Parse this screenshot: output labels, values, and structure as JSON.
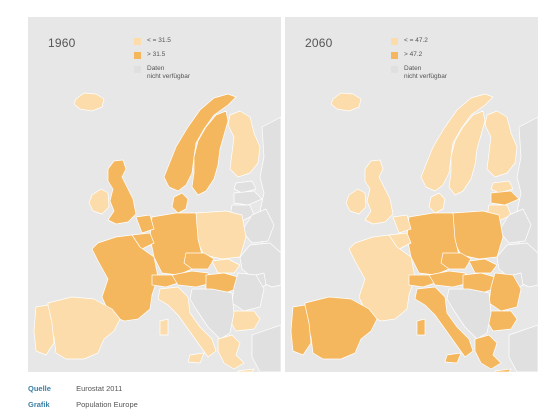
{
  "colors": {
    "low": "#fbdcaa",
    "high": "#f5b75e",
    "nodata": "#e0e0e0",
    "background": "#e7e7e7",
    "border": "#ffffff",
    "source_key": "#3a7fa6"
  },
  "panels": [
    {
      "year": "1960",
      "legend": [
        {
          "label": "< = 31.5",
          "color": "#fbdcaa"
        },
        {
          "label": "> 31.5",
          "color": "#f5b75e"
        },
        {
          "label_line1": "Daten",
          "label_line2": "nicht verfügbar",
          "color": "#e0e0e0"
        }
      ],
      "country_fill": {
        "iceland": "low",
        "ireland": "low",
        "uk": "high",
        "norway": "high",
        "sweden": "high",
        "finland": "low",
        "denmark": "high",
        "estonia": "nodata",
        "latvia": "nodata",
        "lithuania": "nodata",
        "belarus": "nodata",
        "russia": "nodata",
        "ukraine": "nodata",
        "poland": "low",
        "germany": "high",
        "netherlands": "high",
        "belgium": "high",
        "france": "high",
        "spain": "low",
        "portugal": "low",
        "switzerland": "high",
        "italy": "low",
        "austria": "high",
        "czechia": "high",
        "slovakia": "low",
        "hungary": "high",
        "romania": "nodata",
        "bulgaria": "low",
        "balkans": "nodata",
        "greece": "low",
        "turkey": "nodata",
        "moldova": "nodata"
      }
    },
    {
      "year": "2060",
      "legend": [
        {
          "label": "< = 47.2",
          "color": "#fbdcaa"
        },
        {
          "label": "> 47.2",
          "color": "#f5b75e"
        },
        {
          "label_line1": "Daten",
          "label_line2": "nicht verfügbar",
          "color": "#e0e0e0"
        }
      ],
      "country_fill": {
        "iceland": "low",
        "ireland": "low",
        "uk": "low",
        "norway": "low",
        "sweden": "low",
        "finland": "low",
        "denmark": "low",
        "estonia": "low",
        "latvia": "high",
        "lithuania": "low",
        "belarus": "nodata",
        "russia": "nodata",
        "ukraine": "nodata",
        "poland": "high",
        "germany": "high",
        "netherlands": "low",
        "belgium": "low",
        "france": "low",
        "spain": "high",
        "portugal": "high",
        "switzerland": "high",
        "italy": "high",
        "austria": "high",
        "czechia": "high",
        "slovakia": "high",
        "hungary": "high",
        "romania": "high",
        "bulgaria": "high",
        "balkans": "nodata",
        "greece": "high",
        "turkey": "nodata",
        "moldova": "nodata"
      }
    }
  ],
  "footer": {
    "source_label": "Quelle",
    "source_value": "Eurostat 2011",
    "graphic_label": "Grafik",
    "graphic_value": "Population Europe"
  }
}
